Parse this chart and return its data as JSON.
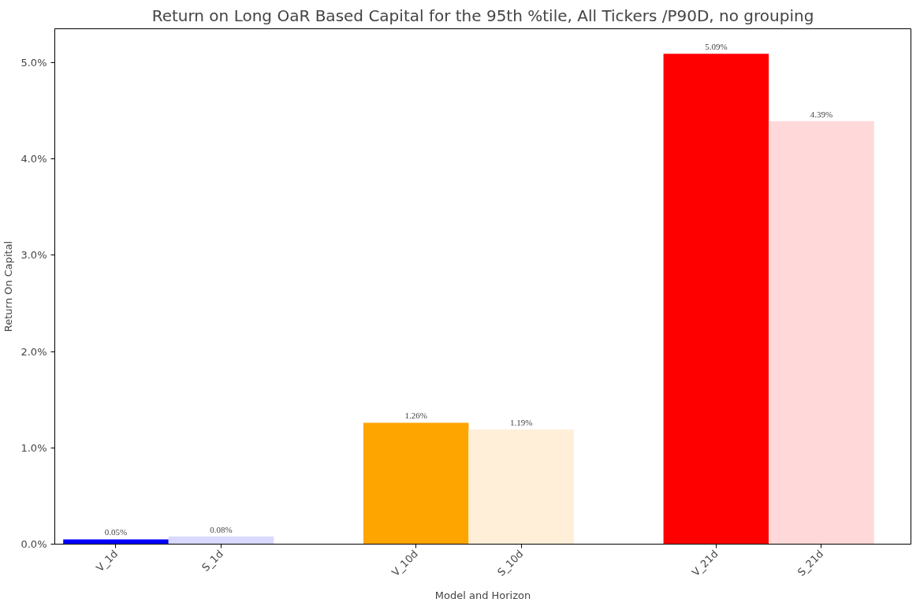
{
  "chart_data": {
    "type": "bar",
    "title": "Return on Long OaR Based Capital for the 95th %tile, All Tickers /P90D, no grouping",
    "xlabel": "Model and Horizon",
    "ylabel": "Return On Capital",
    "categories": [
      "V_1d",
      "S_1d",
      "V_10d",
      "S_10d",
      "V_21d",
      "S_21d"
    ],
    "values": [
      0.05,
      0.08,
      1.26,
      1.19,
      5.09,
      4.39
    ],
    "colors": [
      "#0000ff",
      "#d9d9ff",
      "#ffa500",
      "#ffefd9",
      "#ff0000",
      "#ffd9d9"
    ],
    "value_labels": [
      "0.05%",
      "0.08%",
      "1.26%",
      "1.19%",
      "5.09%",
      "4.39%"
    ],
    "ylim": [
      0,
      5.35
    ],
    "yticks": [
      {
        "value": 0,
        "label": "0.0%"
      },
      {
        "value": 1,
        "label": "1.0%"
      },
      {
        "value": 2,
        "label": "2.0%"
      },
      {
        "value": 3,
        "label": "3.0%"
      },
      {
        "value": 4,
        "label": "4.0%"
      },
      {
        "value": 5,
        "label": "5.0%"
      }
    ],
    "grid": false
  }
}
